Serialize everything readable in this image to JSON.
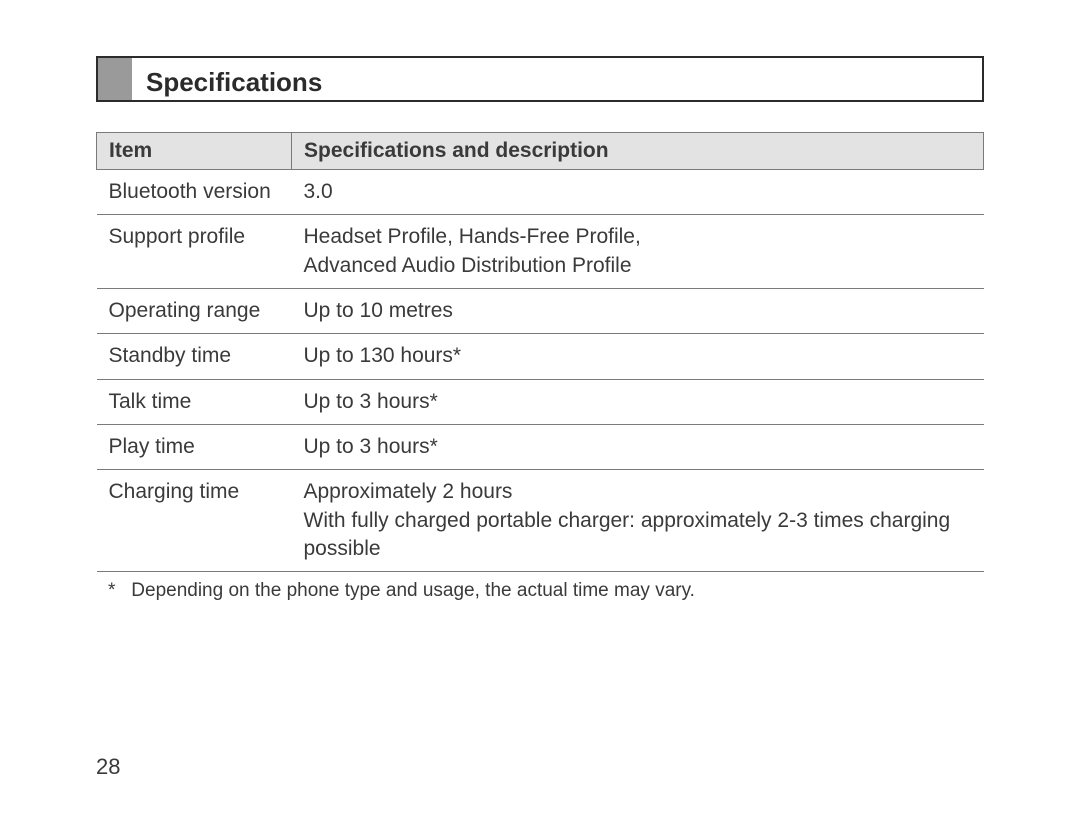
{
  "heading": "Specifications",
  "table": {
    "headers": {
      "item": "Item",
      "spec": "Specifications and description"
    },
    "rows": [
      {
        "item": "Bluetooth version",
        "spec": "3.0"
      },
      {
        "item": "Support profile",
        "spec": "Headset Profile, Hands-Free Profile,\nAdvanced Audio Distribution Profile"
      },
      {
        "item": "Operating range",
        "spec": "Up to 10 metres"
      },
      {
        "item": "Standby time",
        "spec": "Up to 130 hours*"
      },
      {
        "item": "Talk time",
        "spec": "Up to 3 hours*"
      },
      {
        "item": "Play time",
        "spec": "Up to 3 hours*"
      },
      {
        "item": "Charging time",
        "spec": "Approximately 2 hours\nWith fully charged portable charger: approximately 2-3 times charging possible"
      }
    ]
  },
  "footnote": {
    "marker": "*",
    "text": "Depending on the phone type and usage, the actual time may vary."
  },
  "page_number": "28"
}
